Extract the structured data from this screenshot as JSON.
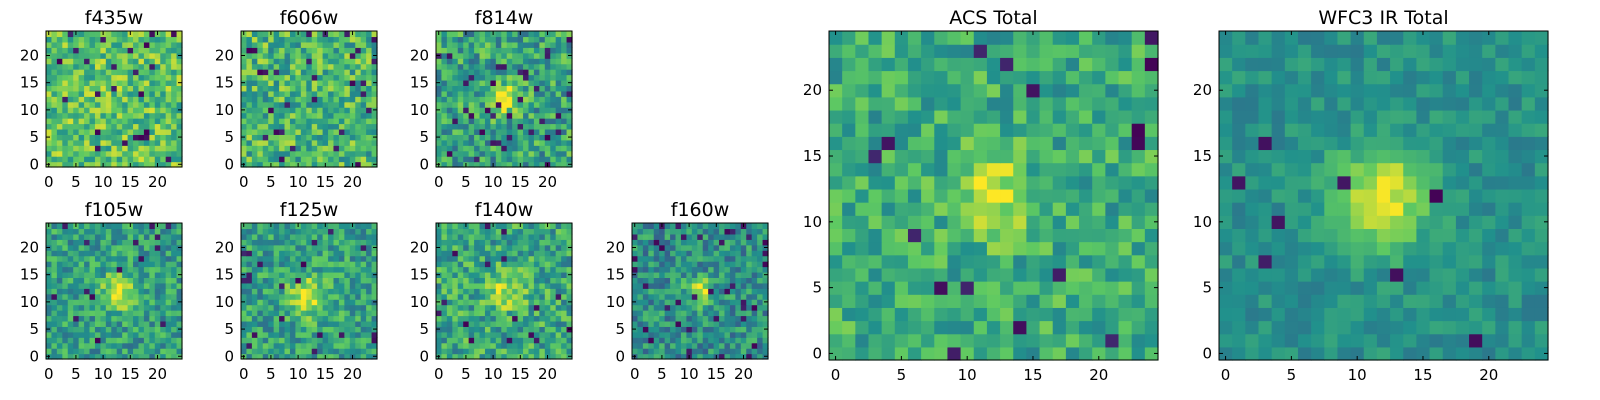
{
  "colormap": {
    "name": "viridis",
    "stops": [
      "#440154",
      "#3b528b",
      "#21918c",
      "#5ec962",
      "#fde725"
    ]
  },
  "chart_data": [
    {
      "type": "heatmap",
      "title": "f435w",
      "grid_size": 25,
      "xlim": [
        -0.5,
        24.5
      ],
      "ylim": [
        -0.5,
        24.5
      ],
      "xticks": [
        0,
        5,
        10,
        15,
        20
      ],
      "yticks": [
        0,
        5,
        10,
        15,
        20
      ],
      "xtick_labels": [
        "0",
        "5",
        "10",
        "15",
        "20"
      ],
      "ytick_labels": [
        "0",
        "5",
        "10",
        "15",
        "20"
      ],
      "background_level": 0.72,
      "noise": 0.22,
      "dark_pixel_rate": 0.04,
      "source": null
    },
    {
      "type": "heatmap",
      "title": "f606w",
      "grid_size": 25,
      "xlim": [
        -0.5,
        24.5
      ],
      "ylim": [
        -0.5,
        24.5
      ],
      "xticks": [
        0,
        5,
        10,
        15,
        20
      ],
      "yticks": [
        0,
        5,
        10,
        15,
        20
      ],
      "xtick_labels": [
        "0",
        "5",
        "10",
        "15",
        "20"
      ],
      "ytick_labels": [
        "0",
        "5",
        "10",
        "15",
        "20"
      ],
      "background_level": 0.66,
      "noise": 0.24,
      "dark_pixel_rate": 0.04,
      "source": null
    },
    {
      "type": "heatmap",
      "title": "f814w",
      "grid_size": 25,
      "xlim": [
        -0.5,
        24.5
      ],
      "ylim": [
        -0.5,
        24.5
      ],
      "xticks": [
        0,
        5,
        10,
        15,
        20
      ],
      "yticks": [
        0,
        5,
        10,
        15,
        20
      ],
      "xtick_labels": [
        "0",
        "5",
        "10",
        "15",
        "20"
      ],
      "ytick_labels": [
        "0",
        "5",
        "10",
        "15",
        "20"
      ],
      "background_level": 0.58,
      "noise": 0.24,
      "dark_pixel_rate": 0.05,
      "source": {
        "x": 12,
        "y": 12,
        "sigma": 1.8,
        "amplitude": 0.4
      }
    },
    {
      "type": "heatmap",
      "title": "f105w",
      "grid_size": 25,
      "xlim": [
        -0.5,
        24.5
      ],
      "ylim": [
        -0.5,
        24.5
      ],
      "xticks": [
        0,
        5,
        10,
        15,
        20
      ],
      "yticks": [
        0,
        5,
        10,
        15,
        20
      ],
      "xtick_labels": [
        "0",
        "5",
        "10",
        "15",
        "20"
      ],
      "ytick_labels": [
        "0",
        "5",
        "10",
        "15",
        "20"
      ],
      "background_level": 0.56,
      "noise": 0.2,
      "dark_pixel_rate": 0.03,
      "source": {
        "x": 13,
        "y": 12,
        "sigma": 2.2,
        "amplitude": 0.45
      }
    },
    {
      "type": "heatmap",
      "title": "f125w",
      "grid_size": 25,
      "xlim": [
        -0.5,
        24.5
      ],
      "ylim": [
        -0.5,
        24.5
      ],
      "xticks": [
        0,
        5,
        10,
        15,
        20
      ],
      "yticks": [
        0,
        5,
        10,
        15,
        20
      ],
      "xtick_labels": [
        "0",
        "5",
        "10",
        "15",
        "20"
      ],
      "ytick_labels": [
        "0",
        "5",
        "10",
        "15",
        "20"
      ],
      "background_level": 0.57,
      "noise": 0.2,
      "dark_pixel_rate": 0.03,
      "source": {
        "x": 12,
        "y": 11,
        "sigma": 2.4,
        "amplitude": 0.42
      }
    },
    {
      "type": "heatmap",
      "title": "f140w",
      "grid_size": 25,
      "xlim": [
        -0.5,
        24.5
      ],
      "ylim": [
        -0.5,
        24.5
      ],
      "xticks": [
        0,
        5,
        10,
        15,
        20
      ],
      "yticks": [
        0,
        5,
        10,
        15,
        20
      ],
      "xtick_labels": [
        "0",
        "5",
        "10",
        "15",
        "20"
      ],
      "ytick_labels": [
        "0",
        "5",
        "10",
        "15",
        "20"
      ],
      "background_level": 0.6,
      "noise": 0.22,
      "dark_pixel_rate": 0.03,
      "source": {
        "x": 12,
        "y": 12,
        "sigma": 2.4,
        "amplitude": 0.35
      }
    },
    {
      "type": "heatmap",
      "title": "f160w",
      "grid_size": 25,
      "xlim": [
        -0.5,
        24.5
      ],
      "ylim": [
        -0.5,
        24.5
      ],
      "xticks": [
        0,
        5,
        10,
        15,
        20
      ],
      "yticks": [
        0,
        5,
        10,
        15,
        20
      ],
      "xtick_labels": [
        "0",
        "5",
        "10",
        "15",
        "20"
      ],
      "ytick_labels": [
        "0",
        "5",
        "10",
        "15",
        "20"
      ],
      "background_level": 0.5,
      "noise": 0.2,
      "dark_pixel_rate": 0.05,
      "source": {
        "x": 12,
        "y": 12,
        "sigma": 1.6,
        "amplitude": 0.5
      }
    },
    {
      "type": "heatmap",
      "title": "ACS Total",
      "grid_size": 25,
      "xlim": [
        -0.5,
        24.5
      ],
      "ylim": [
        -0.5,
        24.5
      ],
      "xticks": [
        0,
        5,
        10,
        15,
        20
      ],
      "yticks": [
        0,
        5,
        10,
        15,
        20
      ],
      "xtick_labels": [
        "0",
        "5",
        "10",
        "15",
        "20"
      ],
      "ytick_labels": [
        "0",
        "5",
        "10",
        "15",
        "20"
      ],
      "background_level": 0.62,
      "noise": 0.18,
      "dark_pixel_rate": 0.025,
      "source": {
        "x": 12,
        "y": 12,
        "sigma": 2.0,
        "amplitude": 0.35
      }
    },
    {
      "type": "heatmap",
      "title": "WFC3 IR Total",
      "grid_size": 25,
      "xlim": [
        -0.5,
        24.5
      ],
      "ylim": [
        -0.5,
        24.5
      ],
      "xticks": [
        0,
        5,
        10,
        15,
        20
      ],
      "yticks": [
        0,
        5,
        10,
        15,
        20
      ],
      "xtick_labels": [
        "0",
        "5",
        "10",
        "15",
        "20"
      ],
      "ytick_labels": [
        "0",
        "5",
        "10",
        "15",
        "20"
      ],
      "background_level": 0.5,
      "noise": 0.1,
      "dark_pixel_rate": 0.02,
      "source": {
        "x": 12,
        "y": 12,
        "sigma": 2.6,
        "amplitude": 0.48
      }
    }
  ]
}
